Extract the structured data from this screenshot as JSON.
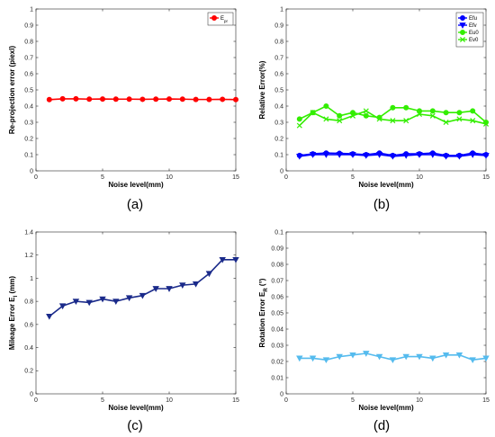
{
  "chart_data": [
    {
      "id": "a",
      "type": "line",
      "caption": "(a)",
      "xlabel": "Noise level(mm)",
      "ylabel": "Re-projection  error (piexl)",
      "xlim": [
        0,
        15
      ],
      "ylim": [
        0,
        1
      ],
      "xticks": [
        "0",
        "5",
        "10",
        "15"
      ],
      "yticks": [
        "0",
        "0.1",
        "0.2",
        "0.3",
        "0.4",
        "0.5",
        "0.6",
        "0.7",
        "0.8",
        "0.9",
        "1"
      ],
      "legend_position": "top-right",
      "series": [
        {
          "name": "E",
          "name_sub": "pr",
          "color": "#ff0000",
          "marker": "circle",
          "x": [
            1,
            2,
            3,
            4,
            5,
            6,
            7,
            8,
            9,
            10,
            11,
            12,
            13,
            14,
            15
          ],
          "values": [
            0.44,
            0.445,
            0.445,
            0.443,
            0.444,
            0.443,
            0.443,
            0.442,
            0.443,
            0.444,
            0.443,
            0.441,
            0.441,
            0.442,
            0.44
          ]
        }
      ]
    },
    {
      "id": "b",
      "type": "line",
      "caption": "(b)",
      "xlabel": "Noise level(mm)",
      "ylabel": "Relative Error(%)",
      "xlim": [
        0,
        15
      ],
      "ylim": [
        0,
        1
      ],
      "xticks": [
        "0",
        "5",
        "10",
        "15"
      ],
      "yticks": [
        "0",
        "0.1",
        "0.2",
        "0.3",
        "0.4",
        "0.5",
        "0.6",
        "0.7",
        "0.8",
        "0.9",
        "1"
      ],
      "legend_position": "top-right",
      "series": [
        {
          "name": "Efu",
          "color": "#0000ff",
          "marker": "circle",
          "x": [
            1,
            2,
            3,
            4,
            5,
            6,
            7,
            8,
            9,
            10,
            11,
            12,
            13,
            14,
            15
          ],
          "values": [
            0.095,
            0.105,
            0.11,
            0.108,
            0.105,
            0.1,
            0.11,
            0.095,
            0.105,
            0.105,
            0.11,
            0.095,
            0.095,
            0.11,
            0.1
          ]
        },
        {
          "name": "Efv",
          "color": "#0000ff",
          "marker": "triangle-down",
          "x": [
            1,
            2,
            3,
            4,
            5,
            6,
            7,
            8,
            9,
            10,
            11,
            12,
            13,
            14,
            15
          ],
          "values": [
            0.09,
            0.1,
            0.1,
            0.1,
            0.1,
            0.095,
            0.1,
            0.09,
            0.095,
            0.1,
            0.1,
            0.09,
            0.09,
            0.1,
            0.095
          ]
        },
        {
          "name": "Eu0",
          "color": "#33ee00",
          "marker": "circle",
          "x": [
            1,
            2,
            3,
            4,
            5,
            6,
            7,
            8,
            9,
            10,
            11,
            12,
            13,
            14,
            15
          ],
          "values": [
            0.32,
            0.36,
            0.4,
            0.34,
            0.36,
            0.34,
            0.33,
            0.39,
            0.39,
            0.37,
            0.37,
            0.36,
            0.36,
            0.37,
            0.3
          ]
        },
        {
          "name": "Ev0",
          "color": "#33ee00",
          "marker": "x",
          "x": [
            1,
            2,
            3,
            4,
            5,
            6,
            7,
            8,
            9,
            10,
            11,
            12,
            13,
            14,
            15
          ],
          "values": [
            0.28,
            0.36,
            0.32,
            0.31,
            0.34,
            0.37,
            0.32,
            0.31,
            0.31,
            0.35,
            0.34,
            0.3,
            0.32,
            0.31,
            0.29
          ]
        }
      ]
    },
    {
      "id": "c",
      "type": "line",
      "caption": "(c)",
      "xlabel": "Noise level(mm)",
      "ylabel": "Mileage Error E",
      "ylabel_sub": "l",
      "ylabel_unit": " (mm)",
      "xlim": [
        0,
        15
      ],
      "ylim": [
        0,
        1.4
      ],
      "xticks": [
        "0",
        "5",
        "10",
        "15"
      ],
      "yticks": [
        "0",
        "0.2",
        "0.4",
        "0.6",
        "0.8",
        "1",
        "1.2",
        "1.4"
      ],
      "series": [
        {
          "color": "#1a2a8a",
          "marker": "triangle-down",
          "x": [
            1,
            2,
            3,
            4,
            5,
            6,
            7,
            8,
            9,
            10,
            11,
            12,
            13,
            14,
            15
          ],
          "values": [
            0.67,
            0.76,
            0.8,
            0.79,
            0.82,
            0.8,
            0.83,
            0.85,
            0.91,
            0.91,
            0.94,
            0.95,
            1.04,
            1.16,
            1.16
          ]
        }
      ]
    },
    {
      "id": "d",
      "type": "line",
      "caption": "(d)",
      "xlabel": "Noise level(mm)",
      "ylabel": "Rotation Error E",
      "ylabel_sub": "R",
      "ylabel_unit": " (°)",
      "xlim": [
        0,
        15
      ],
      "ylim": [
        0,
        0.1
      ],
      "xticks": [
        "0",
        "5",
        "10",
        "15"
      ],
      "yticks": [
        "0",
        "0.01",
        "0.02",
        "0.03",
        "0.04",
        "0.05",
        "0.06",
        "0.07",
        "0.08",
        "0.09",
        "0.1"
      ],
      "series": [
        {
          "color": "#55bbee",
          "marker": "triangle-down",
          "x": [
            1,
            2,
            3,
            4,
            5,
            6,
            7,
            8,
            9,
            10,
            11,
            12,
            13,
            14,
            15
          ],
          "values": [
            0.022,
            0.022,
            0.021,
            0.023,
            0.024,
            0.025,
            0.023,
            0.021,
            0.023,
            0.023,
            0.022,
            0.024,
            0.024,
            0.021,
            0.022
          ]
        }
      ]
    }
  ]
}
